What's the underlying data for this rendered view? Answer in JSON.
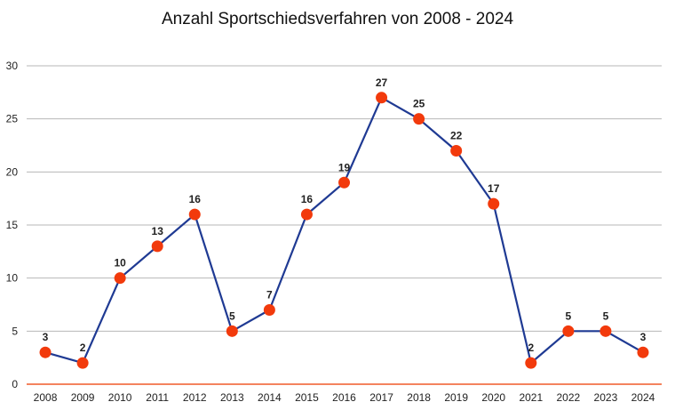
{
  "chart_data": {
    "type": "line",
    "title": "Anzahl Sportschiedsverfahren von 2008 - 2024",
    "xlabel": "",
    "ylabel": "",
    "categories": [
      "2008",
      "2009",
      "2010",
      "2011",
      "2012",
      "2013",
      "2014",
      "2015",
      "2016",
      "2017",
      "2018",
      "2019",
      "2020",
      "2021",
      "2022",
      "2023",
      "2024"
    ],
    "series": [
      {
        "values": [
          3,
          2,
          10,
          13,
          16,
          5,
          7,
          16,
          19,
          27,
          25,
          22,
          17,
          2,
          5,
          5,
          3
        ]
      }
    ],
    "ylim": [
      0,
      30
    ],
    "yticks": [
      "0",
      "5",
      "10",
      "15",
      "20",
      "25",
      "30"
    ],
    "grid": true,
    "legend": "none",
    "data_labels": true,
    "colors": {
      "line": "#1f3a93",
      "marker": "#f23a0c",
      "grid": "#b7b7b7",
      "baseline": "#f05a28"
    }
  }
}
